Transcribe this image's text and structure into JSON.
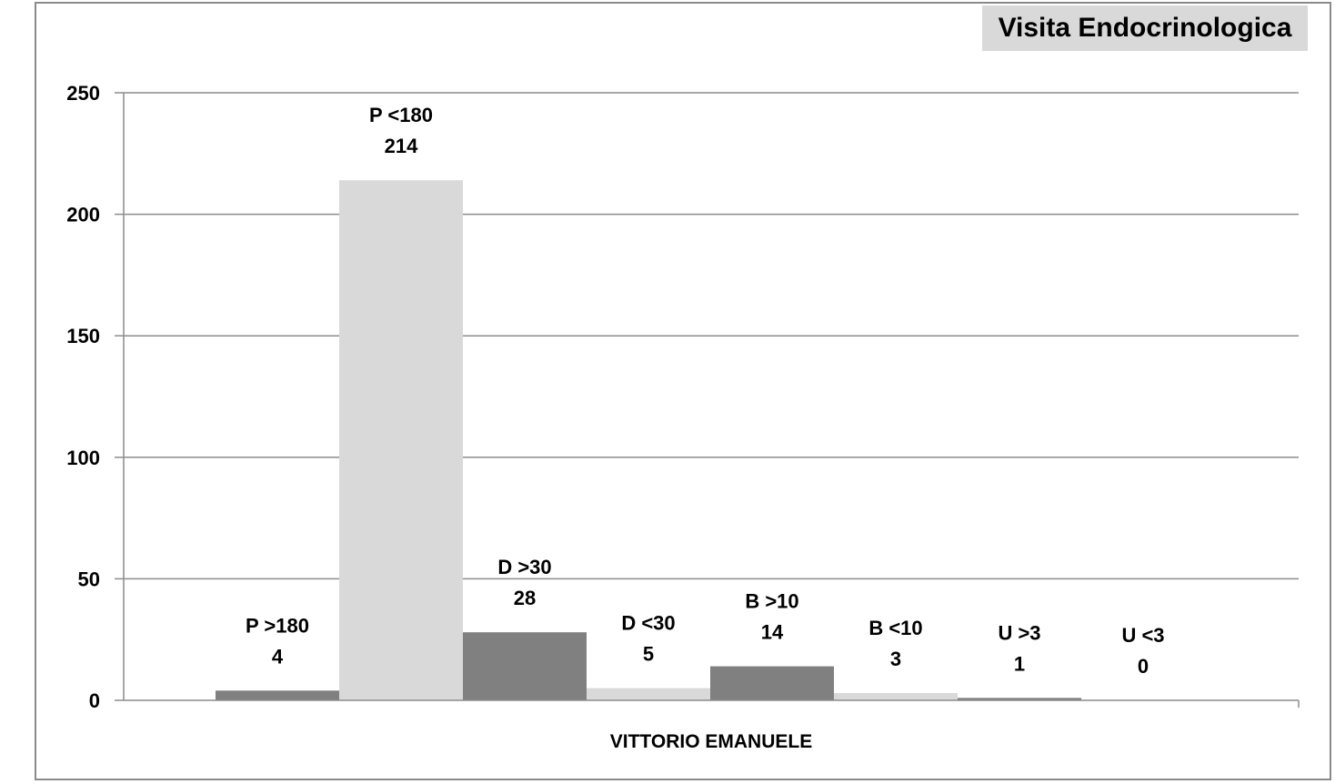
{
  "chart_data": {
    "type": "bar",
    "title": "Visita Endocrinologica",
    "xlabel": "VITTORIO EMANUELE",
    "ylabel": "",
    "ylim": [
      0,
      250
    ],
    "yticks": [
      0,
      50,
      100,
      150,
      200,
      250
    ],
    "grid": true,
    "categories": [
      "VITTORIO EMANUELE"
    ],
    "series": [
      {
        "name": "P  >180",
        "values": [
          4
        ],
        "color": "#808080"
      },
      {
        "name": "P  <180",
        "values": [
          214
        ],
        "color": "#d9d9d9"
      },
      {
        "name": "D  >30",
        "values": [
          28
        ],
        "color": "#808080"
      },
      {
        "name": "D  <30",
        "values": [
          5
        ],
        "color": "#d9d9d9"
      },
      {
        "name": "B  >10",
        "values": [
          14
        ],
        "color": "#808080"
      },
      {
        "name": "B  <10",
        "values": [
          3
        ],
        "color": "#d9d9d9"
      },
      {
        "name": "U  >3",
        "values": [
          1
        ],
        "color": "#808080"
      },
      {
        "name": "U  <3",
        "values": [
          0
        ],
        "color": "#d9d9d9"
      }
    ]
  }
}
